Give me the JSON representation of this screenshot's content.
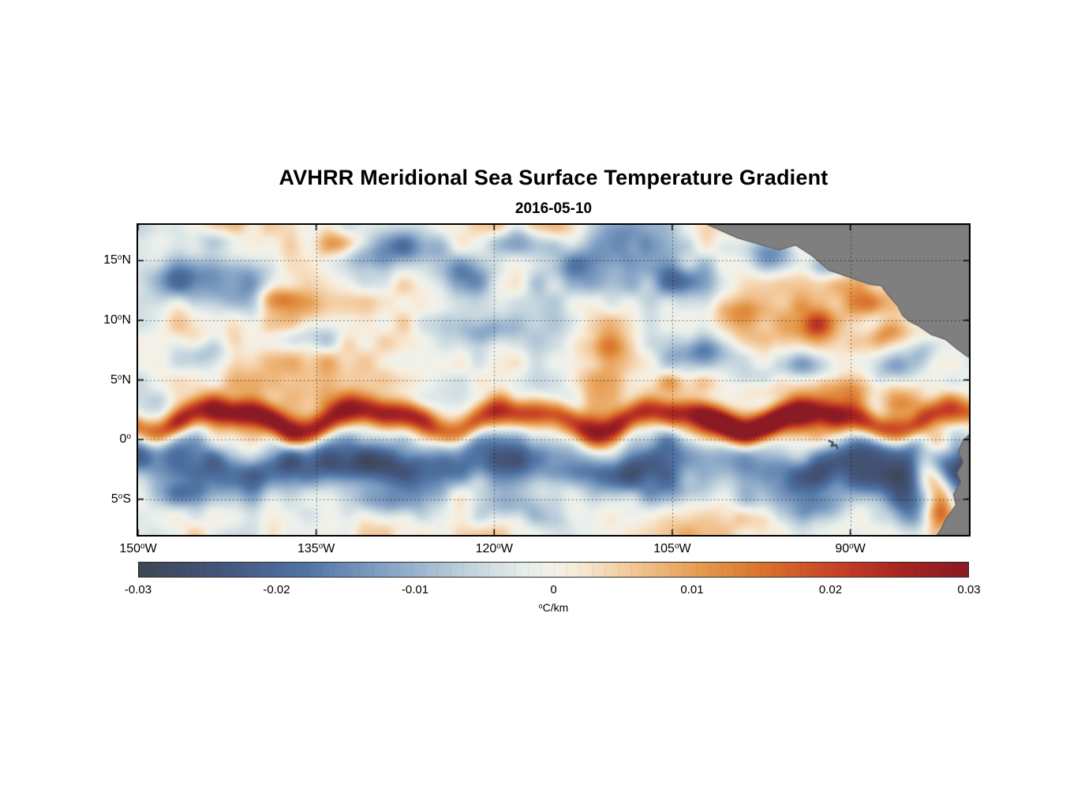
{
  "chart_data": {
    "type": "heatmap",
    "title": "AVHRR Meridional Sea Surface Temperature Gradient",
    "subtitle": "2016-05-10",
    "degree_symbol": "o",
    "colorbar_unit": {
      "value": "",
      "hemi": "C/km"
    },
    "colorbar_label": "°C/km",
    "lon_range": [
      -150,
      -80
    ],
    "lat_range": [
      -8,
      18
    ],
    "xticks": [
      {
        "lon": -150,
        "value": "150",
        "hemi": "W"
      },
      {
        "lon": -135,
        "value": "135",
        "hemi": "W"
      },
      {
        "lon": -120,
        "value": "120",
        "hemi": "W"
      },
      {
        "lon": -105,
        "value": "105",
        "hemi": "W"
      },
      {
        "lon": -90,
        "value": "90",
        "hemi": "W"
      }
    ],
    "yticks": [
      {
        "lat": 15,
        "value": "15",
        "hemi": "N"
      },
      {
        "lat": 10,
        "value": "10",
        "hemi": "N"
      },
      {
        "lat": 5,
        "value": "5",
        "hemi": "N"
      },
      {
        "lat": 0,
        "value": "0",
        "hemi": ""
      },
      {
        "lat": -5,
        "value": "5",
        "hemi": "S"
      }
    ],
    "grid_lons": [
      -135,
      -120,
      -105,
      -90
    ],
    "grid_lats": [
      15,
      10,
      5,
      0,
      -5
    ],
    "colorbar_ticks": [
      "-0.03",
      "-0.02",
      "-0.01",
      "0",
      "0.01",
      "0.02",
      "0.03"
    ],
    "value_range": [
      -0.03,
      0.03
    ],
    "colormap": [
      {
        "t": 0.0,
        "color": "#3d4653"
      },
      {
        "t": 0.1,
        "color": "#44567d"
      },
      {
        "t": 0.2,
        "color": "#4f74a4"
      },
      {
        "t": 0.3,
        "color": "#86a4c6"
      },
      {
        "t": 0.4,
        "color": "#c3d4dd"
      },
      {
        "t": 0.47,
        "color": "#e9efec"
      },
      {
        "t": 0.5,
        "color": "#f3f1e8"
      },
      {
        "t": 0.53,
        "color": "#f7ead6"
      },
      {
        "t": 0.6,
        "color": "#f2c594"
      },
      {
        "t": 0.68,
        "color": "#e59a4d"
      },
      {
        "t": 0.76,
        "color": "#d96f2b"
      },
      {
        "t": 0.84,
        "color": "#c84227"
      },
      {
        "t": 0.92,
        "color": "#a82522"
      },
      {
        "t": 1.0,
        "color": "#8a1a24"
      }
    ],
    "field": {
      "seed": 20160510,
      "noise": [
        {
          "scale_deg": 8.0,
          "amp": 0.004
        },
        {
          "scale_deg": 4.5,
          "amp": 0.007
        },
        {
          "scale_deg": 1.6,
          "amp": 0.0042
        }
      ],
      "bands": [
        {
          "name": "north-equatorial-front",
          "base_lat": 1.7,
          "meander_amp": 0.85,
          "meander_wl": 12.5,
          "meander_phase": 4.2,
          "width": 0.85,
          "amp": 0.026,
          "amp_mod": 0.15,
          "amp_mod_center": -100,
          "amp_mod_wl": 38
        },
        {
          "name": "south-equatorial-cool-band",
          "base_lat": -2.05,
          "meander_amp": 0.7,
          "meander_wl": 15.5,
          "meander_phase": 1.2,
          "width": 1.35,
          "amp": -0.018,
          "amp_mod": 0.12,
          "amp_mod_center": -133,
          "amp_mod_wl": 46
        }
      ],
      "blobs": [
        [
          -146.5,
          13.4,
          -0.015,
          2.2,
          1.2
        ],
        [
          -141.0,
          12.9,
          -0.017,
          1.8,
          1.5
        ],
        [
          -143.5,
          16.8,
          -0.011,
          2.0,
          0.9
        ],
        [
          -131.5,
          14.9,
          -0.012,
          1.6,
          1.0
        ],
        [
          -127.5,
          16.1,
          -0.017,
          2.3,
          1.3
        ],
        [
          -122.5,
          13.7,
          -0.017,
          1.9,
          1.3
        ],
        [
          -118.0,
          16.6,
          -0.015,
          2.0,
          1.0
        ],
        [
          -113.0,
          14.7,
          -0.012,
          1.6,
          0.9
        ],
        [
          -120.5,
          9.2,
          -0.01,
          1.7,
          0.9
        ],
        [
          -135.5,
          8.6,
          -0.011,
          1.8,
          0.9
        ],
        [
          -144.5,
          7.0,
          -0.011,
          1.8,
          0.9
        ],
        [
          -109.5,
          16.4,
          -0.012,
          1.6,
          0.9
        ],
        [
          -104.5,
          13.4,
          -0.011,
          1.5,
          0.9
        ],
        [
          -96.5,
          15.2,
          -0.016,
          1.5,
          1.0
        ],
        [
          -91.8,
          14.6,
          -0.012,
          1.2,
          0.8
        ],
        [
          -102.5,
          7.4,
          -0.013,
          1.9,
          0.9
        ],
        [
          -93.5,
          6.2,
          -0.013,
          1.5,
          0.9
        ],
        [
          -86.2,
          5.9,
          -0.014,
          1.5,
          1.0
        ],
        [
          -84.0,
          7.0,
          -0.012,
          1.1,
          0.9
        ],
        [
          -133.2,
          16.4,
          0.012,
          1.3,
          0.8
        ],
        [
          -138.5,
          11.9,
          0.01,
          1.4,
          0.7
        ],
        [
          -99.5,
          10.2,
          0.012,
          1.9,
          1.0
        ],
        [
          -93.2,
          9.6,
          0.013,
          1.5,
          0.9
        ],
        [
          -89.2,
          11.4,
          0.012,
          1.2,
          0.8
        ],
        [
          -86.8,
          9.0,
          0.011,
          1.1,
          0.8
        ],
        [
          -110.5,
          7.9,
          0.009,
          1.6,
          0.8
        ],
        [
          -104.5,
          4.6,
          0.011,
          1.9,
          0.8
        ],
        [
          -97.5,
          4.1,
          0.009,
          1.6,
          0.7
        ],
        [
          -90.5,
          4.3,
          0.011,
          1.6,
          0.8
        ],
        [
          -85.8,
          3.1,
          0.011,
          1.3,
          0.8
        ],
        [
          -100.0,
          1.1,
          0.01,
          3.0,
          0.9
        ],
        [
          -95.0,
          1.5,
          0.009,
          2.5,
          0.9
        ],
        [
          -89.0,
          1.0,
          0.008,
          2.0,
          0.8
        ],
        [
          -124.0,
          2.0,
          0.006,
          3.0,
          0.9
        ],
        [
          -146.5,
          -4.6,
          -0.012,
          2.4,
          0.8
        ],
        [
          -128.5,
          -5.3,
          -0.011,
          2.1,
          0.9
        ],
        [
          -118.5,
          -5.9,
          -0.009,
          2.0,
          0.9
        ],
        [
          -132.5,
          -2.3,
          -0.007,
          3.5,
          1.0
        ],
        [
          -108.5,
          -2.5,
          -0.007,
          3.5,
          1.1
        ],
        [
          -104.5,
          -4.3,
          -0.014,
          2.6,
          1.1
        ],
        [
          -97.5,
          -4.9,
          -0.012,
          2.0,
          1.0
        ],
        [
          -92.5,
          -5.9,
          -0.011,
          1.7,
          0.9
        ],
        [
          -88.6,
          -3.7,
          -0.016,
          1.8,
          1.1
        ],
        [
          -85.3,
          -5.0,
          -0.014,
          1.2,
          1.6
        ],
        [
          -83.6,
          -2.5,
          0.022,
          0.9,
          1.4
        ],
        [
          -82.4,
          -5.3,
          0.021,
          0.8,
          1.7
        ],
        [
          -82.2,
          -0.3,
          0.012,
          0.8,
          0.8
        ]
      ]
    },
    "land": {
      "color": "#7f7f7f",
      "edge": "#5f5f5f",
      "polygons": [
        [
          [
            -102.0,
            18.0
          ],
          [
            -99.5,
            16.9
          ],
          [
            -96.0,
            15.9
          ],
          [
            -94.6,
            16.3
          ],
          [
            -93.2,
            15.4
          ],
          [
            -91.8,
            14.2
          ],
          [
            -89.8,
            13.5
          ],
          [
            -88.3,
            13.0
          ],
          [
            -87.4,
            12.9
          ],
          [
            -86.8,
            12.1
          ],
          [
            -86.0,
            11.2
          ],
          [
            -85.6,
            10.4
          ],
          [
            -85.0,
            9.9
          ],
          [
            -84.2,
            9.5
          ],
          [
            -83.2,
            8.8
          ],
          [
            -82.0,
            8.4
          ],
          [
            -81.0,
            7.6
          ],
          [
            -80.2,
            7.0
          ],
          [
            -80.0,
            6.9
          ],
          [
            -80.0,
            18.0
          ]
        ],
        [
          [
            -80.0,
            0.4
          ],
          [
            -80.5,
            -0.1
          ],
          [
            -80.9,
            -1.0
          ],
          [
            -80.5,
            -1.9
          ],
          [
            -81.0,
            -2.8
          ],
          [
            -80.7,
            -3.6
          ],
          [
            -81.3,
            -4.6
          ],
          [
            -81.1,
            -5.5
          ],
          [
            -81.9,
            -6.6
          ],
          [
            -82.4,
            -7.6
          ],
          [
            -82.7,
            -8.0
          ],
          [
            -80.0,
            -8.0
          ]
        ]
      ],
      "galapagos": {
        "color": "#3a4556",
        "points": [
          [
            -91.85,
            -0.1
          ],
          [
            -91.45,
            -0.25
          ],
          [
            -91.6,
            -0.55
          ],
          [
            -91.2,
            -0.45
          ],
          [
            -91.05,
            -0.8
          ]
        ]
      }
    }
  }
}
